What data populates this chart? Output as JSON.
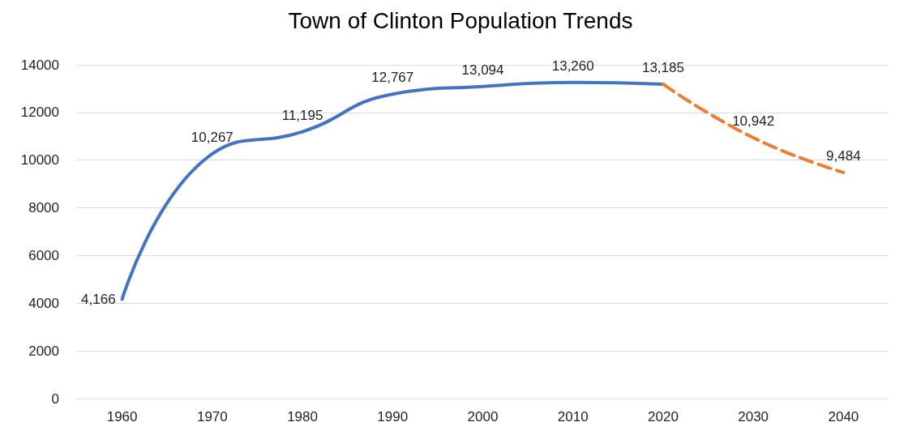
{
  "chart_data": {
    "type": "line",
    "title": "Town of Clinton Population Trends",
    "categories": [
      "1960",
      "1970",
      "1980",
      "1990",
      "2000",
      "2010",
      "2020",
      "2030",
      "2040"
    ],
    "series": [
      {
        "color": "#4472c4",
        "line_style": "solid",
        "values": [
          4166,
          10267,
          11195,
          12767,
          13094,
          13260,
          13185,
          null,
          null
        ],
        "value_labels": [
          "4,166",
          "10,267",
          "11,195",
          "12,767",
          "13,094",
          "13,260",
          "13,185",
          null,
          null
        ]
      },
      {
        "color": "#ed7d31",
        "line_style": "dashed",
        "values": [
          null,
          null,
          null,
          null,
          null,
          null,
          13185,
          10942,
          9484
        ],
        "value_labels": [
          null,
          null,
          null,
          null,
          null,
          null,
          null,
          "10,942",
          "9,484"
        ]
      }
    ],
    "ylim": [
      0,
      14000
    ],
    "yticks": [
      0,
      2000,
      4000,
      6000,
      8000,
      10000,
      12000,
      14000
    ],
    "grid": "y",
    "marker": "none"
  }
}
